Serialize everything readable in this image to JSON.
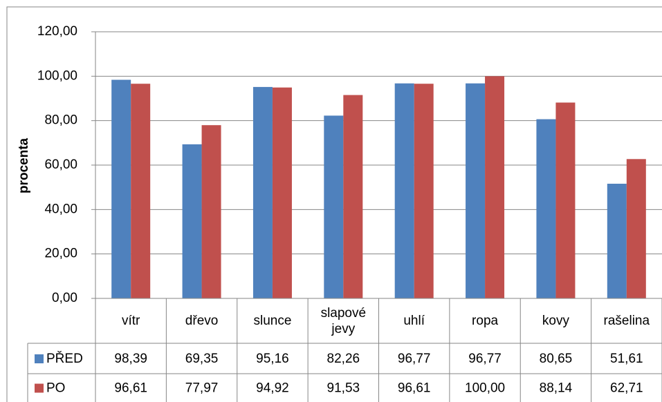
{
  "chart_data": {
    "type": "bar",
    "y_label": "procenta",
    "categories": [
      "vítr",
      "dřevo",
      "slunce",
      "slapové jevy",
      "uhlí",
      "ropa",
      "kovy",
      "rašelina"
    ],
    "series": [
      {
        "name": "PŘED",
        "color": "#4f81bd",
        "values": [
          98.39,
          69.35,
          95.16,
          82.26,
          96.77,
          96.77,
          80.65,
          51.61
        ],
        "value_labels": [
          "98,39",
          "69,35",
          "95,16",
          "82,26",
          "96,77",
          "96,77",
          "80,65",
          "51,61"
        ]
      },
      {
        "name": "PO",
        "color": "#c0504d",
        "values": [
          96.61,
          77.97,
          94.92,
          91.53,
          96.61,
          100.0,
          88.14,
          62.71
        ],
        "value_labels": [
          "96,61",
          "77,97",
          "94,92",
          "91,53",
          "96,61",
          "100,00",
          "88,14",
          "62,71"
        ]
      }
    ],
    "ylim": [
      0,
      120
    ],
    "yticks": [
      {
        "value": 0,
        "label": "0,00"
      },
      {
        "value": 20,
        "label": "20,00"
      },
      {
        "value": 40,
        "label": "40,00"
      },
      {
        "value": 60,
        "label": "60,00"
      },
      {
        "value": 80,
        "label": "80,00"
      },
      {
        "value": 100,
        "label": "100,00"
      },
      {
        "value": 120,
        "label": "120,00"
      }
    ],
    "grid": true,
    "legend": "data-table"
  }
}
